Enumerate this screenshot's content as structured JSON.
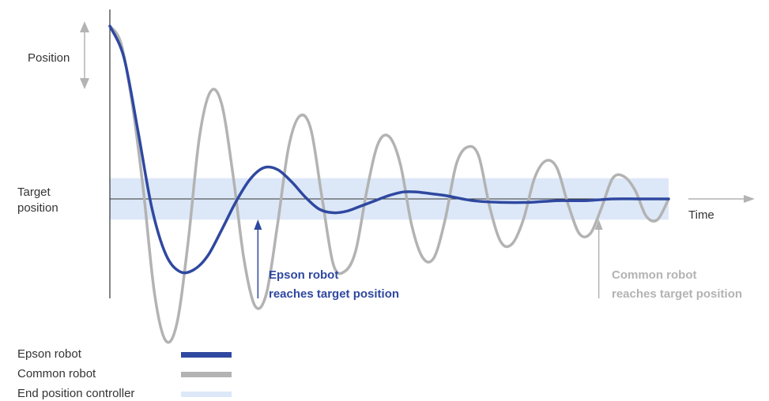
{
  "chart_data": {
    "type": "line",
    "title": "",
    "xlabel": "Time",
    "ylabel": "Position",
    "target_label_line1": "Target",
    "target_label_line2": "position",
    "x_range": [
      0,
      10
    ],
    "y_range": [
      -1.1,
      1.0
    ],
    "target_value": 0,
    "band": {
      "name": "End position controller",
      "y_range": [
        -0.12,
        0.12
      ],
      "color": "#dce8f8"
    },
    "series": [
      {
        "name": "Epson robot",
        "color": "#2f48a0",
        "x": [
          0,
          0.25,
          0.5,
          0.75,
          1.0,
          1.25,
          1.5,
          1.75,
          2.0,
          2.25,
          2.5,
          2.75,
          3.0,
          3.25,
          3.5,
          3.75,
          4.0,
          4.25,
          4.5,
          4.75,
          5.0,
          5.25,
          5.5,
          5.75,
          6.0,
          6.5,
          7.0,
          7.5,
          8.0,
          8.5,
          9.0,
          9.5,
          10.0
        ],
        "values": [
          1.0,
          0.82,
          0.4,
          -0.05,
          -0.32,
          -0.42,
          -0.41,
          -0.33,
          -0.18,
          -0.02,
          0.11,
          0.18,
          0.17,
          0.1,
          0.01,
          -0.06,
          -0.08,
          -0.07,
          -0.04,
          -0.01,
          0.02,
          0.04,
          0.04,
          0.03,
          0.02,
          -0.01,
          -0.02,
          -0.02,
          -0.01,
          -0.01,
          0.0,
          0.0,
          0.0
        ]
      },
      {
        "name": "Common robot",
        "color": "#b3b3b3",
        "x": [
          0,
          0.2,
          0.4,
          0.6,
          0.8,
          1.0,
          1.2,
          1.4,
          1.6,
          1.8,
          2.0,
          2.2,
          2.4,
          2.6,
          2.8,
          3.0,
          3.2,
          3.4,
          3.6,
          3.8,
          4.0,
          4.2,
          4.4,
          4.6,
          4.8,
          5.0,
          5.2,
          5.4,
          5.6,
          5.8,
          6.0,
          6.2,
          6.4,
          6.6,
          6.8,
          7.0,
          7.2,
          7.4,
          7.6,
          7.8,
          8.0,
          8.2,
          8.4,
          8.6,
          8.8,
          9.0,
          9.2,
          9.4,
          9.6,
          9.8,
          10.0
        ],
        "values": [
          1.0,
          0.9,
          0.55,
          0.05,
          -0.55,
          -0.82,
          -0.72,
          -0.25,
          0.35,
          0.62,
          0.55,
          0.15,
          -0.35,
          -0.62,
          -0.55,
          -0.15,
          0.3,
          0.48,
          0.4,
          0.0,
          -0.38,
          -0.42,
          -0.3,
          0.05,
          0.32,
          0.36,
          0.2,
          -0.15,
          -0.34,
          -0.34,
          -0.12,
          0.2,
          0.3,
          0.25,
          -0.05,
          -0.25,
          -0.26,
          -0.12,
          0.12,
          0.22,
          0.18,
          -0.03,
          -0.2,
          -0.2,
          -0.05,
          0.12,
          0.13,
          0.05,
          -0.1,
          -0.12,
          0.0
        ]
      }
    ],
    "annotations": [
      {
        "series": "Epson robot",
        "x": 2.65,
        "line1": "Epson robot",
        "line2": "reaches target position"
      },
      {
        "series": "Common robot",
        "x": 8.75,
        "line1": "Common robot",
        "line2": "reaches target position"
      }
    ],
    "legend": {
      "placement": "bottom-left",
      "items": [
        {
          "label": "Epson robot",
          "color": "#2f48a0"
        },
        {
          "label": "Common robot",
          "color": "#b3b3b3"
        },
        {
          "label": "End position controller",
          "color": "#dce8f8"
        }
      ]
    }
  }
}
